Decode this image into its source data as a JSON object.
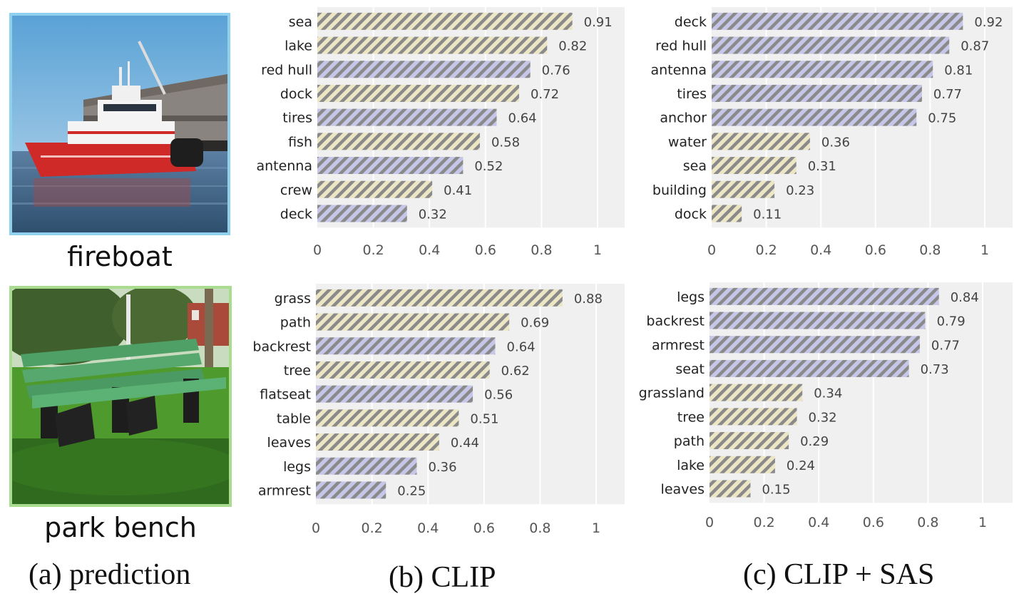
{
  "colors": {
    "part_bar": "#c6c6e8",
    "context_bar": "#ece6c5",
    "hatch": "#8a8a8a",
    "plot_bg": "#f0f0f0",
    "fireboat_border": "#8fd0ef",
    "bench_border": "#a9dc8e"
  },
  "predictions": [
    {
      "label": "fireboat",
      "image_icon": "fireboat-photo"
    },
    {
      "label": "park bench",
      "image_icon": "park-bench-photo"
    }
  ],
  "captions": {
    "a": "(a) prediction",
    "b": "(b) CLIP",
    "c": "(c) CLIP + SAS"
  },
  "chart_data": [
    {
      "id": "clip-fireboat",
      "type": "bar",
      "orientation": "horizontal",
      "categories": [
        "sea",
        "lake",
        "red hull",
        "dock",
        "tires",
        "fish",
        "antenna",
        "crew",
        "deck"
      ],
      "values": [
        0.91,
        0.82,
        0.76,
        0.72,
        0.64,
        0.58,
        0.52,
        0.41,
        0.32
      ],
      "labels": [
        "0.91",
        "0.82",
        "0.76",
        "0.72",
        "0.64",
        "0.58",
        "0.52",
        "0.41",
        "0.32"
      ],
      "kind": [
        "context",
        "context",
        "part",
        "context",
        "part",
        "context",
        "part",
        "context",
        "part"
      ],
      "xticks": [
        "0",
        "0.2",
        "0.4",
        "0.6",
        "0.8",
        "1"
      ],
      "xlim": [
        0,
        1.1
      ]
    },
    {
      "id": "sas-fireboat",
      "type": "bar",
      "orientation": "horizontal",
      "categories": [
        "deck",
        "red hull",
        "antenna",
        "tires",
        "anchor",
        "water",
        "sea",
        "building",
        "dock"
      ],
      "values": [
        0.92,
        0.87,
        0.81,
        0.77,
        0.75,
        0.36,
        0.31,
        0.23,
        0.11
      ],
      "labels": [
        "0.92",
        "0.87",
        "0.81",
        "0.77",
        "0.75",
        "0.36",
        "0.31",
        "0.23",
        "0.11"
      ],
      "kind": [
        "part",
        "part",
        "part",
        "part",
        "part",
        "context",
        "context",
        "context",
        "context"
      ],
      "xticks": [
        "0",
        "0.2",
        "0.4",
        "0.6",
        "0.8",
        "1"
      ],
      "xlim": [
        0,
        1.1
      ]
    },
    {
      "id": "clip-bench",
      "type": "bar",
      "orientation": "horizontal",
      "categories": [
        "grass",
        "path",
        "backrest",
        "tree",
        "flatseat",
        "table",
        "leaves",
        "legs",
        "armrest"
      ],
      "values": [
        0.88,
        0.69,
        0.64,
        0.62,
        0.56,
        0.51,
        0.44,
        0.36,
        0.25
      ],
      "labels": [
        "0.88",
        "0.69",
        "0.64",
        "0.62",
        "0.56",
        "0.51",
        "0.44",
        "0.36",
        "0.25"
      ],
      "kind": [
        "context",
        "context",
        "part",
        "context",
        "part",
        "context",
        "context",
        "part",
        "part"
      ],
      "xticks": [
        "0",
        "0.2",
        "0.4",
        "0.6",
        "0.8",
        "1"
      ],
      "xlim": [
        0,
        1.1
      ]
    },
    {
      "id": "sas-bench",
      "type": "bar",
      "orientation": "horizontal",
      "categories": [
        "legs",
        "backrest",
        "armrest",
        "seat",
        "grassland",
        "tree",
        "path",
        "lake",
        "leaves"
      ],
      "values": [
        0.84,
        0.79,
        0.77,
        0.73,
        0.34,
        0.32,
        0.29,
        0.24,
        0.15
      ],
      "labels": [
        "0.84",
        "0.79",
        "0.77",
        "0.73",
        "0.34",
        "0.32",
        "0.29",
        "0.24",
        "0.15"
      ],
      "kind": [
        "part",
        "part",
        "part",
        "part",
        "context",
        "context",
        "context",
        "context",
        "context"
      ],
      "xticks": [
        "0",
        "0.2",
        "0.4",
        "0.6",
        "0.8",
        "1"
      ],
      "xlim": [
        0,
        1.1
      ]
    }
  ]
}
